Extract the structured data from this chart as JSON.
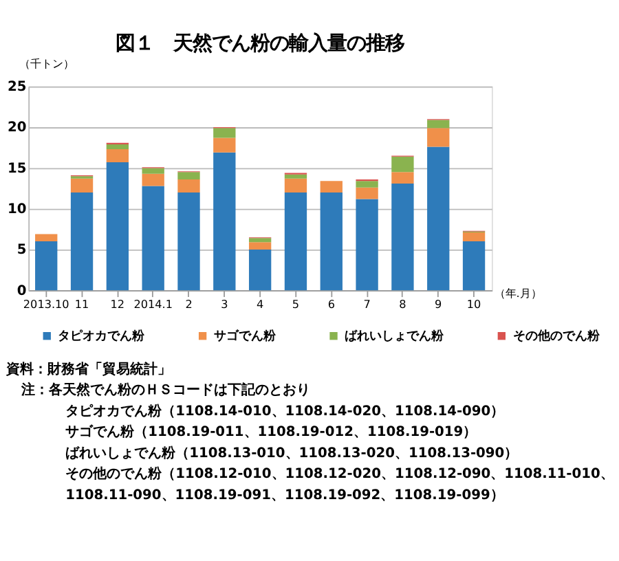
{
  "chart_data": {
    "type": "bar",
    "stacked": true,
    "title": "図１　天然でん粉の輸入量の推移",
    "ylabel": "（千トン）",
    "xlabel": "（年.月）",
    "categories": [
      "2013.10",
      "11",
      "12",
      "2014.1",
      "2",
      "3",
      "4",
      "5",
      "6",
      "7",
      "8",
      "9",
      "10"
    ],
    "series": [
      {
        "name": "タピオカでん粉",
        "color": "#2e7bba",
        "values": [
          6.0,
          12.0,
          15.7,
          12.8,
          12.0,
          16.9,
          5.0,
          12.0,
          12.0,
          11.2,
          13.1,
          17.6,
          6.0
        ]
      },
      {
        "name": "サゴでん粉",
        "color": "#f0904a",
        "values": [
          0.9,
          1.7,
          1.6,
          1.5,
          1.6,
          1.8,
          0.9,
          1.7,
          1.4,
          1.4,
          1.4,
          2.3,
          1.1
        ]
      },
      {
        "name": "ばれいしょでん粉",
        "color": "#8ab34f",
        "values": [
          0.0,
          0.3,
          0.6,
          0.7,
          0.9,
          1.2,
          0.5,
          0.5,
          0.0,
          0.8,
          1.9,
          1.0,
          0.1
        ]
      },
      {
        "name": "その他のでん粉",
        "color": "#d9534f",
        "values": [
          0.0,
          0.1,
          0.2,
          0.1,
          0.1,
          0.1,
          0.1,
          0.2,
          0.0,
          0.2,
          0.1,
          0.1,
          0.1
        ]
      }
    ],
    "ylim": [
      0,
      25
    ],
    "yticks": [
      0,
      5,
      10,
      15,
      20,
      25
    ],
    "grid": "y",
    "legend": "bottom",
    "annotations": [
      "資料：財務省「貿易統計」",
      "注：各天然でん粉のＨＳコードは下記のとおり",
      "タピオカでん粉（1108.14-010、1108.14-020、1108.14-090）",
      "サゴでん粉（1108.19-011、1108.19-012、1108.19-019）",
      "ばれいしょでん粉（1108.13-010、1108.13-020、1108.13-090）",
      "その他のでん粉（1108.12-010、1108.12-020、1108.12-090、1108.11-010、",
      "1108.11-090、1108.19-091、1108.19-092、1108.19-099）"
    ]
  }
}
